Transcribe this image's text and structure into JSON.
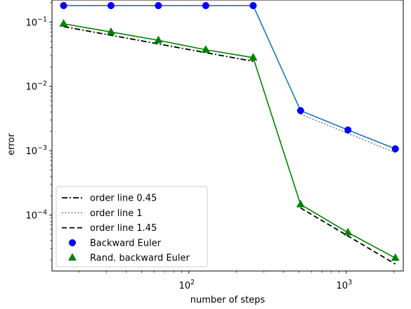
{
  "chart_data": {
    "type": "line",
    "xscale": "log",
    "yscale": "log",
    "xlim": [
      13.5,
      2300
    ],
    "ylim": [
      1.35e-05,
      0.22
    ],
    "xlabel": "number of steps",
    "ylabel": "error",
    "x_ticks": [
      {
        "value": 100,
        "base": "10",
        "exp": "2"
      },
      {
        "value": 1000,
        "base": "10",
        "exp": "3"
      }
    ],
    "y_ticks": [
      {
        "value": 0.1,
        "base": "10",
        "exp": "−1"
      },
      {
        "value": 0.01,
        "base": "10",
        "exp": "−2"
      },
      {
        "value": 0.001,
        "base": "10",
        "exp": "−3"
      },
      {
        "value": 0.0001,
        "base": "10",
        "exp": "−4"
      }
    ],
    "legend_position": "lower-left",
    "series": [
      {
        "name": "order line 0.45",
        "kind": "ref",
        "color": "#000000",
        "dash": "8,3,2,3",
        "width": 1.8,
        "x": [
          16,
          256
        ],
        "y": [
          0.085,
          0.0245
        ]
      },
      {
        "name": "order line 1",
        "kind": "ref",
        "color": "#808080",
        "dash": "2,2.5",
        "width": 1.6,
        "x": [
          512,
          2048
        ],
        "y": [
          0.0037,
          0.00093
        ]
      },
      {
        "name": "order line 1.45",
        "kind": "ref",
        "color": "#000000",
        "dash": "7,4",
        "width": 1.8,
        "x": [
          512,
          2048
        ],
        "y": [
          0.000129,
          1.73e-05
        ]
      },
      {
        "name": "Backward Euler",
        "kind": "data",
        "color": "#1f77b4",
        "marker": "circle",
        "marker_color": "#0000ff",
        "x": [
          16,
          32,
          64,
          128,
          256,
          512,
          1024,
          2048
        ],
        "y": [
          0.18,
          0.18,
          0.18,
          0.18,
          0.18,
          0.0042,
          0.0021,
          0.00107
        ]
      },
      {
        "name": "Rand. backward Euler",
        "kind": "data",
        "color": "#008000",
        "marker": "triangle",
        "marker_color": "#008000",
        "x": [
          16,
          32,
          64,
          128,
          256,
          512,
          1024,
          2048
        ],
        "y": [
          0.094,
          0.07,
          0.052,
          0.037,
          0.028,
          0.000146,
          5.35e-05,
          2.15e-05
        ]
      }
    ]
  }
}
